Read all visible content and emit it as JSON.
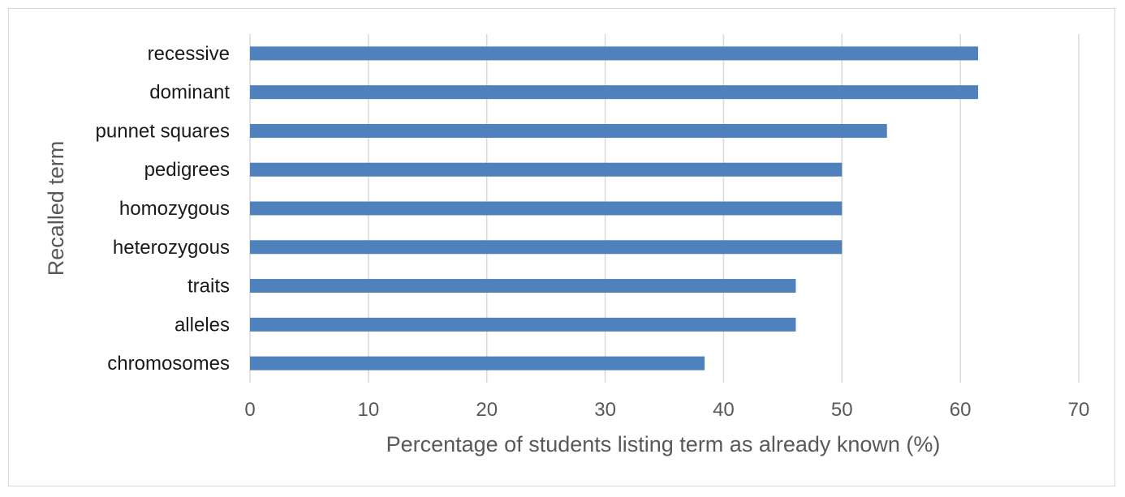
{
  "chart_data": {
    "type": "bar",
    "orientation": "horizontal",
    "categories": [
      "recessive",
      "dominant",
      "punnet squares",
      "pedigrees",
      "homozygous",
      "heterozygous",
      "traits",
      "alleles",
      "chromosomes"
    ],
    "values": [
      61.5,
      61.5,
      53.8,
      50,
      50,
      50,
      46.1,
      46.1,
      38.4
    ],
    "xlabel": "Percentage of students listing term as already known (%)",
    "ylabel": "Recalled term",
    "xlim": [
      0,
      70
    ],
    "xticks": [
      0,
      10,
      20,
      30,
      40,
      50,
      60,
      70
    ],
    "grid": "vertical",
    "bar_color": "#4f81bd"
  }
}
